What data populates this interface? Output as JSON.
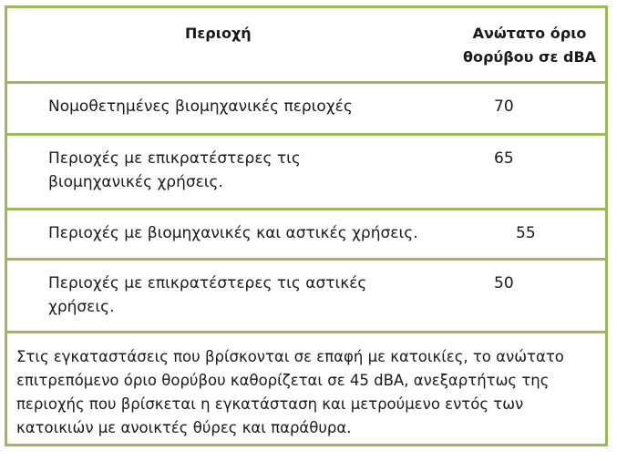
{
  "header": {
    "area": "Περιοχή",
    "limit_line1": "Ανώτατο όριο",
    "limit_line2": "θορύβου σε dBA"
  },
  "rows": [
    {
      "area": "Νομοθετημένες βιομηχανικές περιοχές",
      "limit": "70"
    },
    {
      "area": "Περιοχές με επικρατέστερες τις βιομηχανικές χρήσεις.",
      "limit": "65"
    },
    {
      "area": "Περιοχές με βιομηχανικές και αστικές χρήσεις.",
      "limit": "55"
    },
    {
      "area": "Περιοχές με επικρατέστερες τις αστικές χρήσεις.",
      "limit": "50"
    }
  ],
  "note": "Στις εγκαταστάσεις που βρίσκονται σε επαφή με κατοικίες, το ανώτατο επιτρεπόμενο όριο θορύβου καθορίζεται σε 45 dBA, ανεξαρτήτως της περιοχής που βρίσκεται η εγκατάσταση και μετρούμενο εντός των κατοικιών με ανοικτές θύρες και παράθυρα.",
  "colors": {
    "border": "#9bbb59"
  }
}
